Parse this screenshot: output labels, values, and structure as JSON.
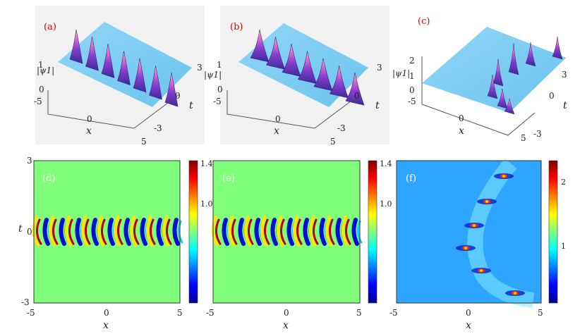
{
  "chart_data": [
    {
      "type": "surface",
      "panel": "(a)",
      "zlabel": "|ψ1|",
      "xlabel": "x",
      "ylabel": "t",
      "xticks": [
        "-5",
        "0",
        "5"
      ],
      "yticks": [
        "3",
        "0",
        "-3"
      ],
      "zticks": [
        "1",
        "0"
      ],
      "xlim": [
        -5,
        5
      ],
      "ylim": [
        -3,
        3
      ],
      "zlim": [
        0,
        1.4
      ]
    },
    {
      "type": "surface",
      "panel": "(b)",
      "zlabel": "|ψ1|",
      "xlabel": "x",
      "ylabel": "t",
      "xticks": [
        "-5",
        "0",
        "5"
      ],
      "yticks": [
        "3",
        "0",
        "-3"
      ],
      "zticks": [
        "1",
        "0"
      ],
      "xlim": [
        -5,
        5
      ],
      "ylim": [
        -3,
        3
      ],
      "zlim": [
        0,
        1.4
      ]
    },
    {
      "type": "surface",
      "panel": "(c)",
      "zlabel": "|ψ1|",
      "xlabel": "x",
      "ylabel": "t",
      "xticks": [
        "-5",
        "0",
        "5"
      ],
      "yticks": [
        "3",
        "0",
        "-3"
      ],
      "zticks": [
        "2",
        "1",
        "0"
      ],
      "xlim": [
        -5,
        5
      ],
      "ylim": [
        -3,
        3
      ],
      "zlim": [
        0,
        2.5
      ]
    },
    {
      "type": "heatmap",
      "panel": "(d)",
      "xlabel": "x",
      "ylabel": "t",
      "xticks": [
        "-5",
        "0",
        "5"
      ],
      "yticks": [
        "3",
        "0",
        "-3"
      ],
      "xlim": [
        -5,
        5
      ],
      "ylim": [
        -3,
        3
      ],
      "colorbar_ticks": [
        "1.4",
        "1.0"
      ],
      "colorbar_range": [
        0.4,
        1.4
      ]
    },
    {
      "type": "heatmap",
      "panel": "(e)",
      "xlabel": "x",
      "xticks": [
        "-5",
        "0",
        "5"
      ],
      "xlim": [
        -5,
        5
      ],
      "ylim": [
        -3,
        3
      ],
      "colorbar_ticks": [
        "1.4",
        "1.0"
      ],
      "colorbar_range": [
        0.4,
        1.4
      ]
    },
    {
      "type": "heatmap",
      "panel": "(f)",
      "xlabel": "x",
      "xticks": [
        "-5",
        "0",
        "5"
      ],
      "xlim": [
        -5,
        5
      ],
      "ylim": [
        -3,
        3
      ],
      "colorbar_ticks": [
        "2",
        "1"
      ],
      "colorbar_range": [
        0.2,
        2.4
      ]
    }
  ]
}
